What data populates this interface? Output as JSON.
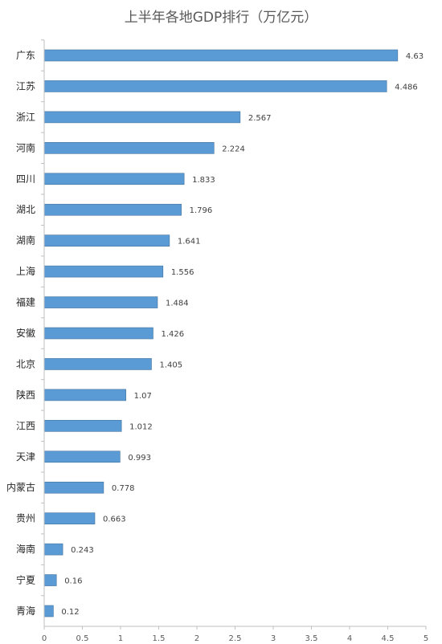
{
  "chart_data": {
    "type": "bar",
    "orientation": "horizontal",
    "title": "上半年各地GDP排行（万亿元）",
    "xlabel": "",
    "ylabel": "",
    "xlim": [
      0,
      5
    ],
    "x_ticks": [
      "0",
      "0.5",
      "1",
      "1.5",
      "2",
      "2.5",
      "3",
      "3.5",
      "4",
      "4.5",
      "5"
    ],
    "categories": [
      "广东",
      "江苏",
      "浙江",
      "河南",
      "四川",
      "湖北",
      "湖南",
      "上海",
      "福建",
      "安徽",
      "北京",
      "陕西",
      "江西",
      "天津",
      "内蒙古",
      "贵州",
      "海南",
      "宁夏",
      "青海"
    ],
    "values": [
      4.63,
      4.486,
      2.567,
      2.224,
      1.833,
      1.796,
      1.641,
      1.556,
      1.484,
      1.426,
      1.405,
      1.07,
      1.012,
      0.993,
      0.778,
      0.663,
      0.243,
      0.16,
      0.12
    ],
    "value_labels": [
      "4.63",
      "4.486",
      "2.567",
      "2.224",
      "1.833",
      "1.796",
      "1.641",
      "1.556",
      "1.484",
      "1.426",
      "1.405",
      "1.07",
      "1.012",
      "0.993",
      "0.778",
      "0.663",
      "0.243",
      "0.16",
      "0.12"
    ],
    "grid": false,
    "legend": "none",
    "colors": {
      "bar": "#5B9BD5",
      "bar_edge": "#41719C",
      "axis": "#bfbfbf"
    }
  }
}
